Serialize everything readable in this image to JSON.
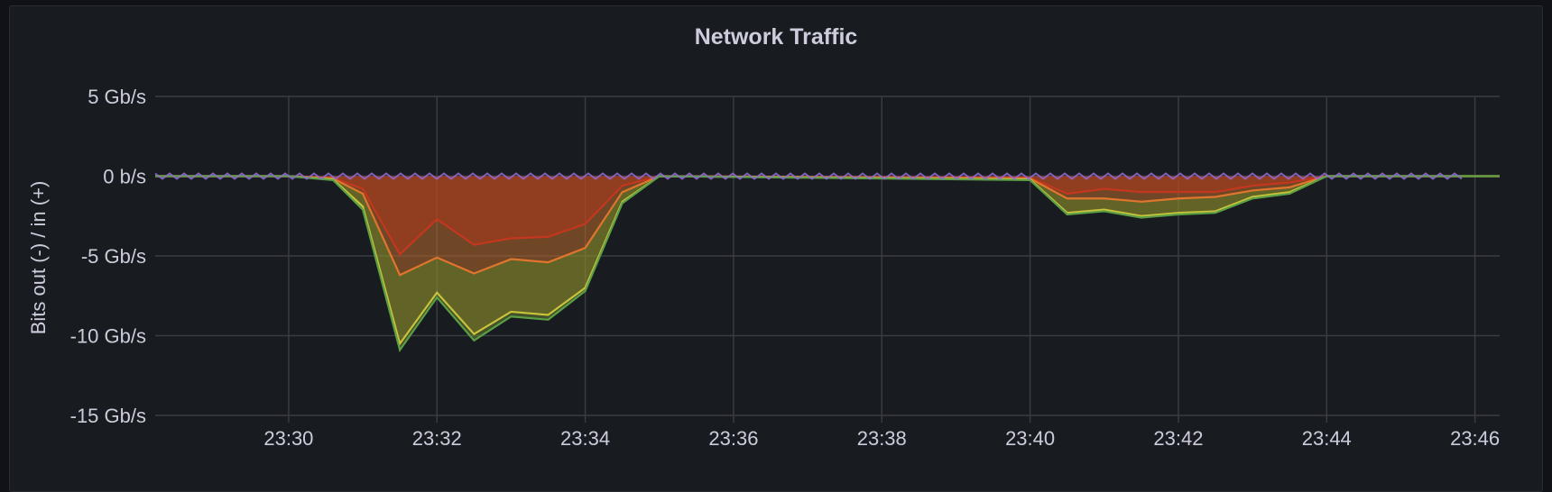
{
  "panel": {
    "title": "Network Traffic"
  },
  "chart_data": {
    "type": "area",
    "title": "Network Traffic",
    "xlabel": "",
    "ylabel": "Bits out (-) / in (+)",
    "y_unit": "Gb/s",
    "ylim": [
      -15,
      5
    ],
    "yticks": [
      5,
      0,
      -5,
      -10,
      -15
    ],
    "ytick_labels": [
      "5 Gb/s",
      "0 b/s",
      "-5 Gb/s",
      "-10 Gb/s",
      "-15 Gb/s"
    ],
    "xlim": [
      "23:28:12",
      "23:46:20"
    ],
    "xtick_labels": [
      "23:30",
      "23:32",
      "23:34",
      "23:36",
      "23:38",
      "23:40",
      "23:42",
      "23:44",
      "23:46"
    ],
    "xticks": [
      "23:30",
      "23:32",
      "23:34",
      "23:36",
      "23:38",
      "23:40",
      "23:42",
      "23:44",
      "23:46"
    ],
    "stacked": true,
    "grid": true,
    "legend": "none",
    "x": [
      "23:28:12",
      "23:30:00",
      "23:30:36",
      "23:31:00",
      "23:31:30",
      "23:32:00",
      "23:32:30",
      "23:33:00",
      "23:33:30",
      "23:34:00",
      "23:34:30",
      "23:35:00",
      "23:40:00",
      "23:40:30",
      "23:41:00",
      "23:41:30",
      "23:42:00",
      "23:42:30",
      "23:43:00",
      "23:43:30",
      "23:44:00",
      "23:46:20"
    ],
    "series": [
      {
        "color": "#e0752d",
        "values": [
          0,
          0,
          -0.1,
          -0.8,
          -4.9,
          -2.7,
          -4.3,
          -3.9,
          -3.8,
          -3.0,
          -0.6,
          0,
          -0.1,
          -1.1,
          -0.8,
          -1.0,
          -1.0,
          -1.0,
          -0.6,
          -0.4,
          0,
          0
        ]
      },
      {
        "color": "#e0752d",
        "values": [
          0,
          0,
          -0.05,
          -0.3,
          -1.3,
          -2.4,
          -1.8,
          -1.3,
          -1.6,
          -1.5,
          -0.4,
          0,
          -0.05,
          -0.3,
          -0.6,
          -0.6,
          -0.4,
          -0.3,
          -0.3,
          -0.3,
          0,
          0
        ]
      },
      {
        "color": "#c8c33a",
        "values": [
          0,
          0,
          -0.05,
          -0.8,
          -4.3,
          -2.2,
          -3.8,
          -3.3,
          -3.3,
          -2.5,
          -0.6,
          0,
          -0.05,
          -0.9,
          -0.7,
          -0.9,
          -0.9,
          -0.9,
          -0.4,
          -0.3,
          0,
          0
        ]
      },
      {
        "color": "#73bf69",
        "values": [
          0,
          0,
          -0.05,
          -0.2,
          -0.4,
          -0.3,
          -0.4,
          -0.3,
          -0.3,
          -0.2,
          -0.1,
          0,
          -0.05,
          -0.1,
          -0.1,
          -0.1,
          -0.1,
          -0.1,
          -0.1,
          -0.1,
          0,
          0
        ]
      },
      {
        "color": "#8f6ad6",
        "values": [
          0.1,
          0.1,
          0.1,
          0.1,
          0.1,
          0.1,
          0.1,
          0.1,
          0.1,
          0.1,
          0.1,
          0.1,
          0.1,
          0.1,
          0.1,
          0.1,
          0.1,
          0.1,
          0.1,
          0.1,
          0.1,
          0.1
        ]
      }
    ]
  },
  "colors": {
    "background": "#181b1f",
    "grid": "#3a3c42",
    "text": "#ccccdc",
    "red_line": "#c4371f",
    "orange_fill": "#c4582a",
    "yellow_line": "#c8c33a",
    "green_line": "#5a9e45",
    "purple": "#8f6ad6"
  }
}
